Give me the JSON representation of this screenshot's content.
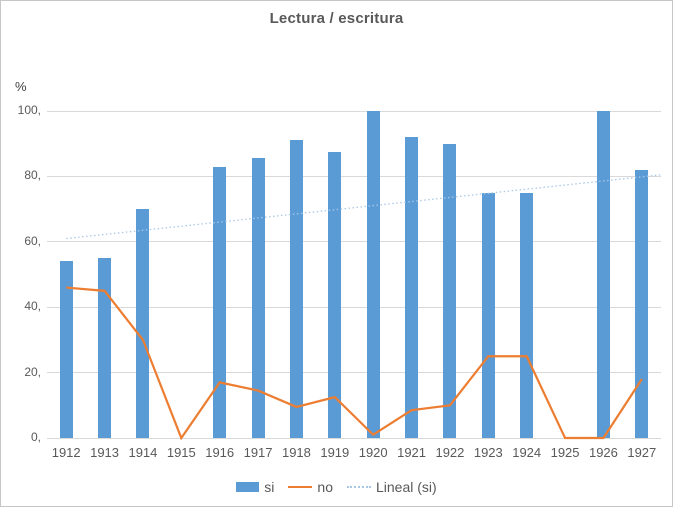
{
  "figure": {
    "title": "Lectura / escritura",
    "y_unit_label": "%"
  },
  "legend": {
    "items": [
      {
        "label": "si",
        "swatch": "bar",
        "color": "#5B9BD5"
      },
      {
        "label": "no",
        "swatch": "line",
        "color": "#ED7D31"
      },
      {
        "label": "Lineal (si)",
        "swatch": "dotted-line",
        "color": "#A9C8E8"
      }
    ]
  },
  "chart_data": {
    "type": "bar",
    "title": "Lectura / escritura",
    "xlabel": "",
    "ylabel": "%",
    "ylim": [
      0,
      100
    ],
    "grid": true,
    "legend_position": "bottom",
    "categories": [
      "1912",
      "1913",
      "1914",
      "1915",
      "1916",
      "1917",
      "1918",
      "1919",
      "1920",
      "1921",
      "1922",
      "1923",
      "1924",
      "1925",
      "1926",
      "1927"
    ],
    "y_ticks": [
      {
        "value": 0,
        "label": "0,"
      },
      {
        "value": 20,
        "label": "20,"
      },
      {
        "value": 40,
        "label": "40,"
      },
      {
        "value": 60,
        "label": "60,"
      },
      {
        "value": 80,
        "label": "80,"
      },
      {
        "value": 100,
        "label": "100,"
      }
    ],
    "series": [
      {
        "name": "si",
        "type": "bar",
        "color": "#5B9BD5",
        "values": [
          54,
          55,
          70,
          0,
          83,
          85.5,
          91,
          87.5,
          100,
          92,
          90,
          75,
          75,
          0,
          100,
          82
        ]
      },
      {
        "name": "no",
        "type": "line",
        "color": "#ED7D31",
        "values": [
          46,
          45,
          30,
          0,
          17,
          14.5,
          9.5,
          12.5,
          1,
          8.5,
          10,
          25,
          25,
          0,
          0,
          18
        ]
      },
      {
        "name": "Lineal (si)",
        "type": "trendline",
        "style": "dotted",
        "color": "#A9C8E8",
        "start_value": 61,
        "end_value": 80.5
      }
    ]
  },
  "colors": {
    "background": "#FFFFFF",
    "figure_border": "#C6C6C6",
    "gridline": "#D9D9D9",
    "axis_text": "#595959",
    "title_text": "#595959"
  }
}
